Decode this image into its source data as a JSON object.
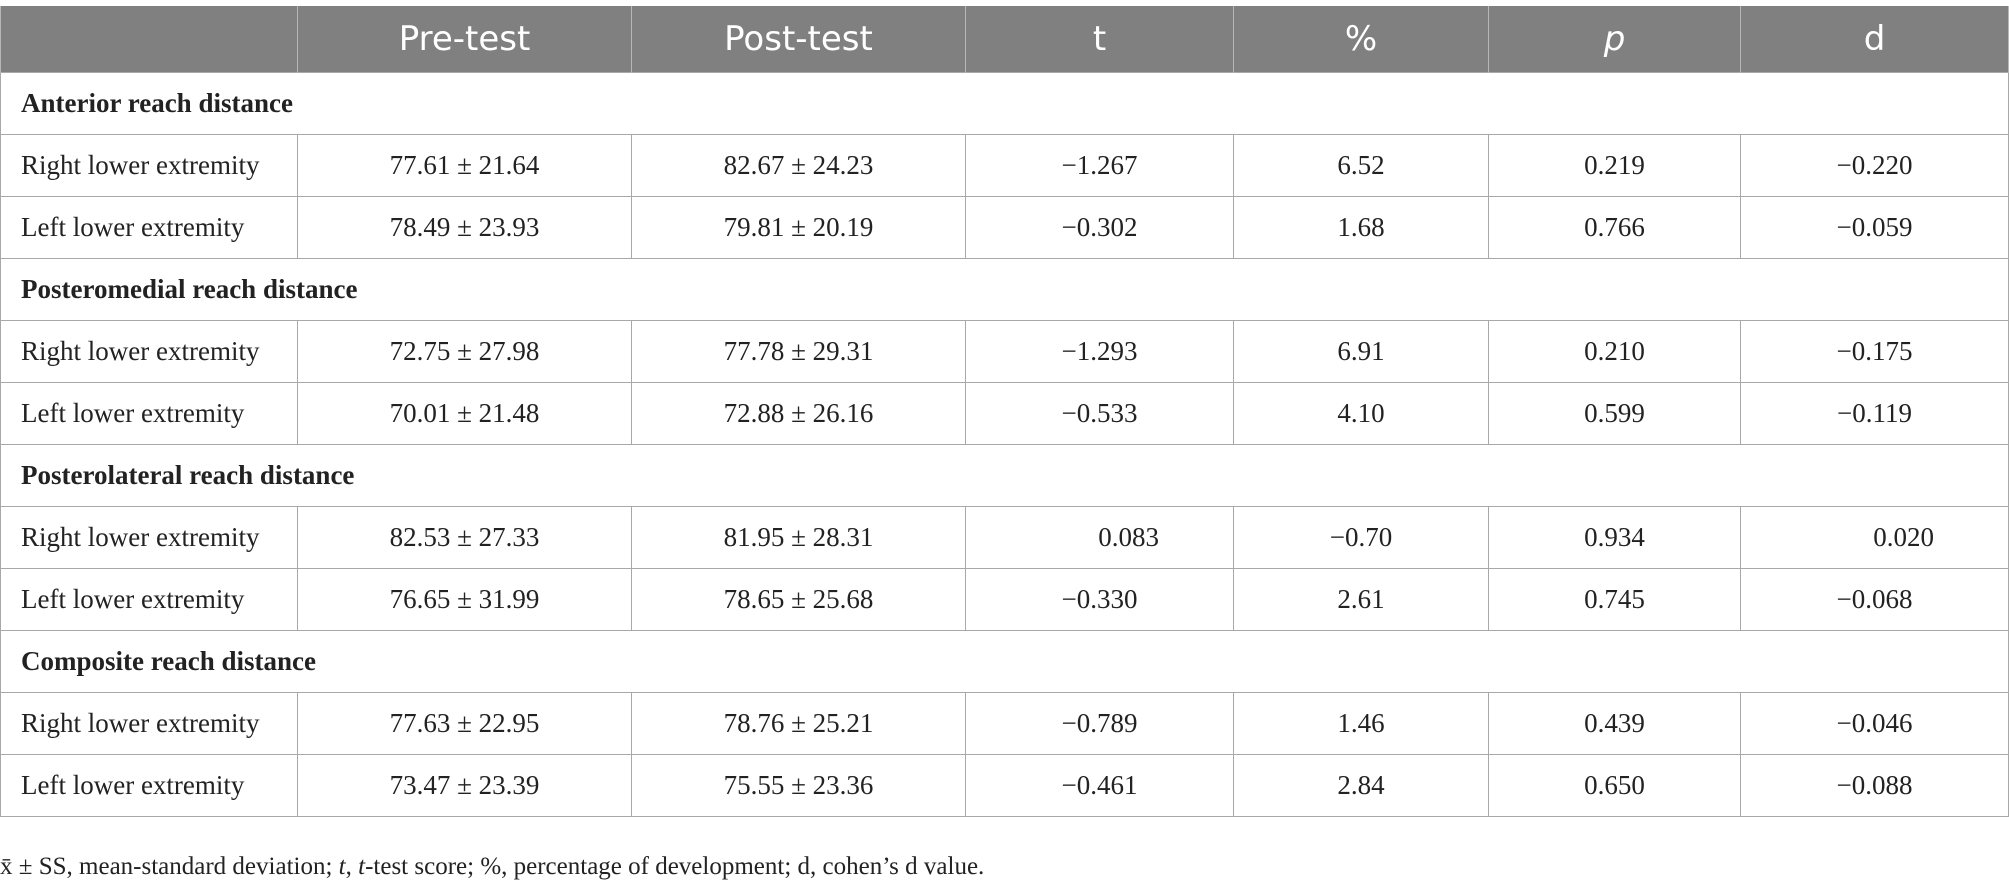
{
  "headers": [
    "",
    "Pre-test",
    "Post-test",
    "t",
    "%",
    "p",
    "d"
  ],
  "sections": [
    {
      "title": "Anterior reach distance",
      "rows": [
        {
          "label": "Right lower extremity",
          "pre": "77.61 ± 21.64",
          "post": "82.67 ± 24.23",
          "t": "−1.267",
          "pct": "6.52",
          "p": "0.219",
          "d": "−0.220"
        },
        {
          "label": "Left lower extremity",
          "pre": "78.49 ± 23.93",
          "post": "79.81 ± 20.19",
          "t": "−0.302",
          "pct": "1.68",
          "p": "0.766",
          "d": "−0.059"
        }
      ]
    },
    {
      "title": "Posteromedial reach distance",
      "rows": [
        {
          "label": "Right lower extremity",
          "pre": "72.75 ± 27.98",
          "post": "77.78 ± 29.31",
          "t": "−1.293",
          "pct": "6.91",
          "p": "0.210",
          "d": "−0.175"
        },
        {
          "label": "Left lower extremity",
          "pre": "70.01 ± 21.48",
          "post": "72.88 ± 26.16",
          "t": "−0.533",
          "pct": "4.10",
          "p": "0.599",
          "d": "−0.119"
        }
      ]
    },
    {
      "title": "Posterolateral reach distance",
      "rows": [
        {
          "label": "Right lower extremity",
          "pre": "82.53 ± 27.33",
          "post": "81.95 ± 28.31",
          "t": "0.083",
          "pct": "−0.70",
          "p": "0.934",
          "d": "0.020"
        },
        {
          "label": "Left lower extremity",
          "pre": "76.65 ± 31.99",
          "post": "78.65 ± 25.68",
          "t": "−0.330",
          "pct": "2.61",
          "p": "0.745",
          "d": "−0.068"
        }
      ]
    },
    {
      "title": "Composite reach distance",
      "rows": [
        {
          "label": "Right lower extremity",
          "pre": "77.63 ± 22.95",
          "post": "78.76 ± 25.21",
          "t": "−0.789",
          "pct": "1.46",
          "p": "0.439",
          "d": "−0.046"
        },
        {
          "label": "Left lower extremity",
          "pre": "73.47 ± 23.39",
          "post": "75.55 ± 23.36",
          "t": "−0.461",
          "pct": "2.84",
          "p": "0.650",
          "d": "−0.088"
        }
      ]
    }
  ],
  "footnote": {
    "part1": "x̄ ± SS, mean-standard deviation; ",
    "t_italic": "t",
    "part2": ", ",
    "t_italic2": "t",
    "part3": "-test score; %, percentage of development; d, cohen’s d value."
  },
  "colors": {
    "header_bg": "#808080",
    "header_text": "#ffffff",
    "grid": "#a8a8a8",
    "body_text": "#222222"
  }
}
